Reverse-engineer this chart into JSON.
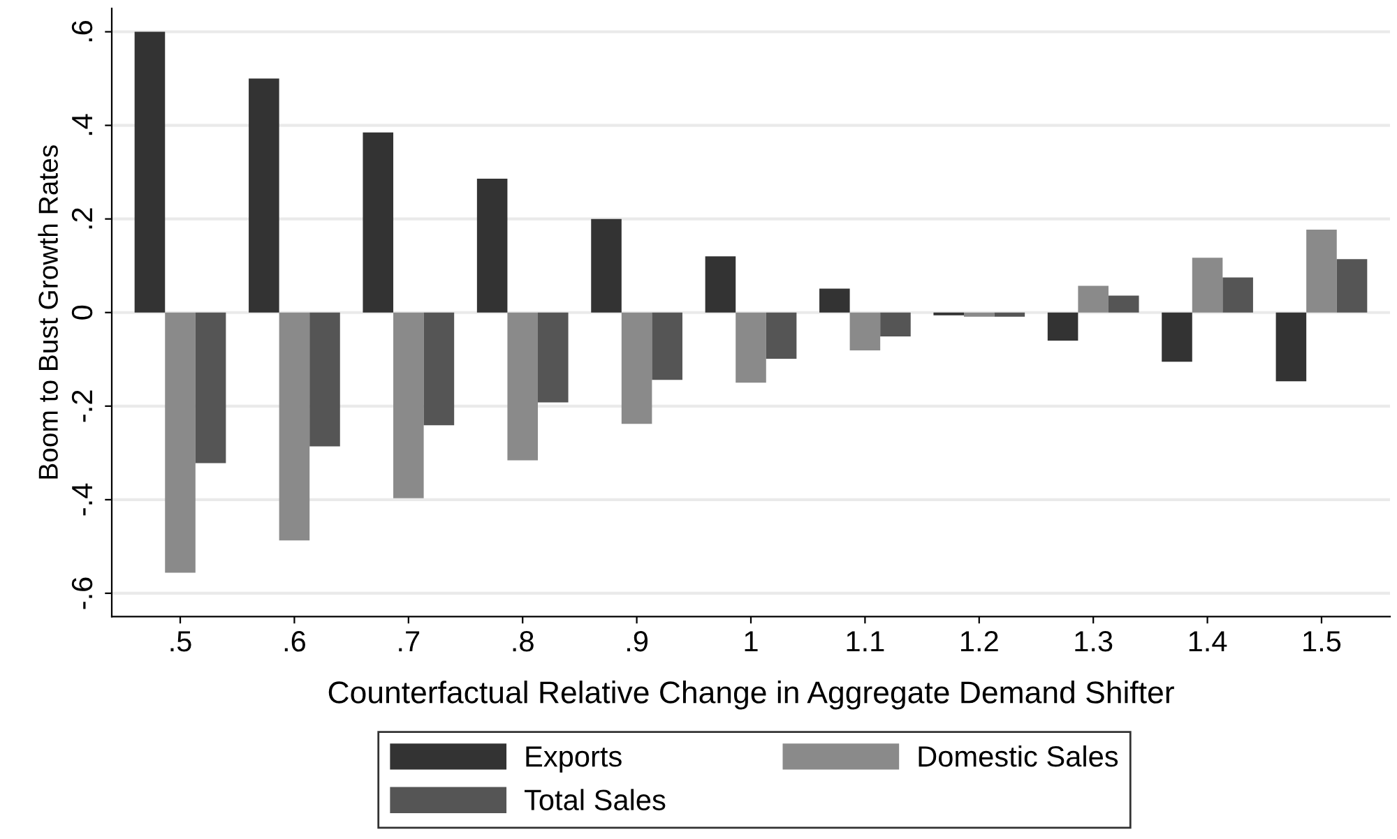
{
  "chart_data": {
    "type": "bar",
    "xlabel": "Counterfactual Relative Change in Aggregate Demand Shifter",
    "ylabel": "Boom to Bust Growth Rates",
    "categories": [
      ".5",
      ".6",
      ".7",
      ".8",
      ".9",
      "1",
      "1.1",
      "1.2",
      "1.3",
      "1.4",
      "1.5"
    ],
    "series": [
      {
        "name": "Exports",
        "color": "#333333",
        "values": [
          0.6,
          0.5,
          0.385,
          0.286,
          0.2,
          0.12,
          0.051,
          -0.006,
          -0.06,
          -0.105,
          -0.147
        ]
      },
      {
        "name": "Domestic Sales",
        "color": "#8a8a8a",
        "values": [
          -0.556,
          -0.487,
          -0.397,
          -0.316,
          -0.238,
          -0.15,
          -0.081,
          -0.009,
          0.057,
          0.117,
          0.177
        ]
      },
      {
        "name": "Total Sales",
        "color": "#555555",
        "values": [
          -0.322,
          -0.286,
          -0.241,
          -0.192,
          -0.144,
          -0.099,
          -0.051,
          -0.009,
          0.036,
          0.075,
          0.114
        ]
      }
    ],
    "ylim": [
      -0.65,
      0.65
    ],
    "yticks": [
      {
        "value": -0.6,
        "label": "-.6"
      },
      {
        "value": -0.4,
        "label": "-.4"
      },
      {
        "value": -0.2,
        "label": "-.2"
      },
      0,
      {
        "value": 0.2,
        "label": ".2"
      },
      {
        "value": 0.4,
        "label": ".4"
      },
      {
        "value": 0.6,
        "label": ".6"
      }
    ],
    "grid": "y",
    "legend": "bottom"
  }
}
